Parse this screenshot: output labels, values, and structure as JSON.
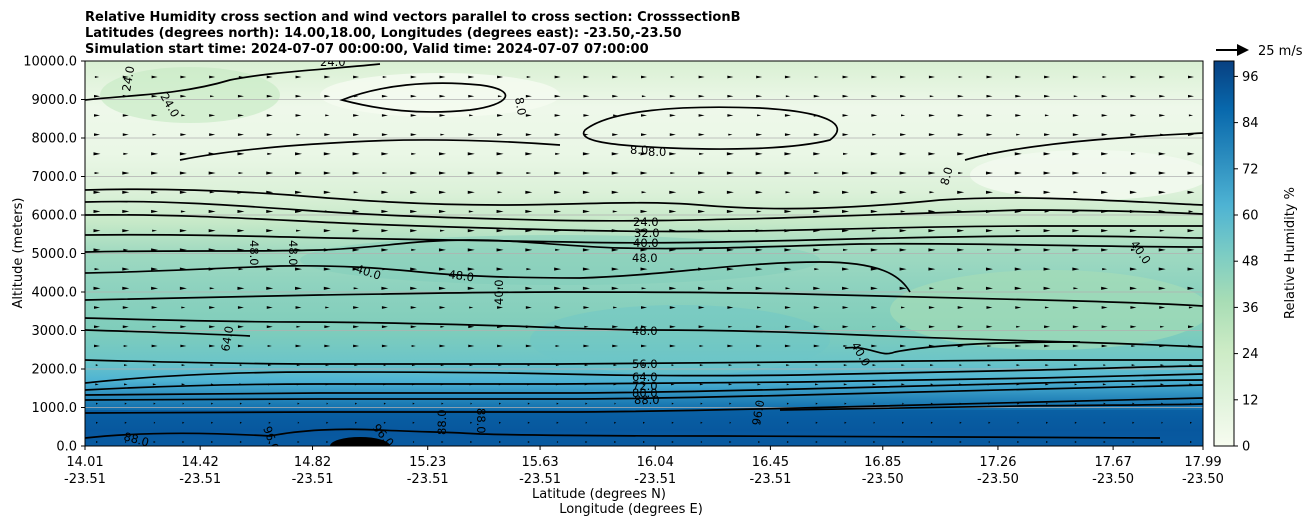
{
  "chart_data": {
    "type": "contour",
    "title_lines": [
      "Relative Humidity cross section and wind vectors parallel to cross section: CrosssectionB",
      "Latitudes (degrees north): 14.00,18.00, Longitudes (degrees east): -23.50,-23.50",
      "Simulation start time: 2024-07-07 00:00:00, Valid time: 2024-07-07 07:00:00"
    ],
    "ylabel": "Altitude (meters)",
    "xlabel_lines": [
      "Latitude (degrees N)",
      "Longitude (degrees E)"
    ],
    "ylim": [
      0,
      10000
    ],
    "y_ticks": [
      "0.0",
      "1000.0",
      "2000.0",
      "3000.0",
      "4000.0",
      "5000.0",
      "6000.0",
      "7000.0",
      "8000.0",
      "9000.0",
      "10000.0"
    ],
    "x_ticks": [
      {
        "lat": "14.01",
        "lon": "-23.51"
      },
      {
        "lat": "14.42",
        "lon": "-23.51"
      },
      {
        "lat": "14.82",
        "lon": "-23.51"
      },
      {
        "lat": "15.23",
        "lon": "-23.51"
      },
      {
        "lat": "15.63",
        "lon": "-23.51"
      },
      {
        "lat": "16.04",
        "lon": "-23.51"
      },
      {
        "lat": "16.45",
        "lon": "-23.51"
      },
      {
        "lat": "16.85",
        "lon": "-23.50"
      },
      {
        "lat": "17.26",
        "lon": "-23.50"
      },
      {
        "lat": "17.67",
        "lon": "-23.50"
      },
      {
        "lat": "17.99",
        "lon": "-23.50"
      }
    ],
    "colorbar": {
      "label": "Relative Humidity %",
      "range": [
        0,
        100
      ],
      "ticks": [
        "0",
        "12",
        "24",
        "36",
        "48",
        "60",
        "72",
        "84",
        "96"
      ],
      "colormap": "GnBu",
      "low_color": "#f7fcf0",
      "high_color": "#084081"
    },
    "quiver_key": "25 m/s",
    "contour_levels": [
      "8.0",
      "24.0",
      "32.0",
      "40.0",
      "48.0",
      "56.0",
      "64.0",
      "72.0",
      "80.0",
      "88.0",
      "96.0"
    ],
    "grid": "horizontal",
    "humidity_profile": [
      {
        "altitude": 0,
        "rh": 97
      },
      {
        "altitude": 500,
        "rh": 94
      },
      {
        "altitude": 1000,
        "rh": 86
      },
      {
        "altitude": 1500,
        "rh": 70
      },
      {
        "altitude": 2000,
        "rh": 58
      },
      {
        "altitude": 2500,
        "rh": 52
      },
      {
        "altitude": 3000,
        "rh": 48
      },
      {
        "altitude": 4000,
        "rh": 44
      },
      {
        "altitude": 5000,
        "rh": 38
      },
      {
        "altitude": 6000,
        "rh": 24
      },
      {
        "altitude": 7000,
        "rh": 14
      },
      {
        "altitude": 8000,
        "rh": 10
      },
      {
        "altitude": 9000,
        "rh": 10
      },
      {
        "altitude": 10000,
        "rh": 16
      }
    ]
  }
}
